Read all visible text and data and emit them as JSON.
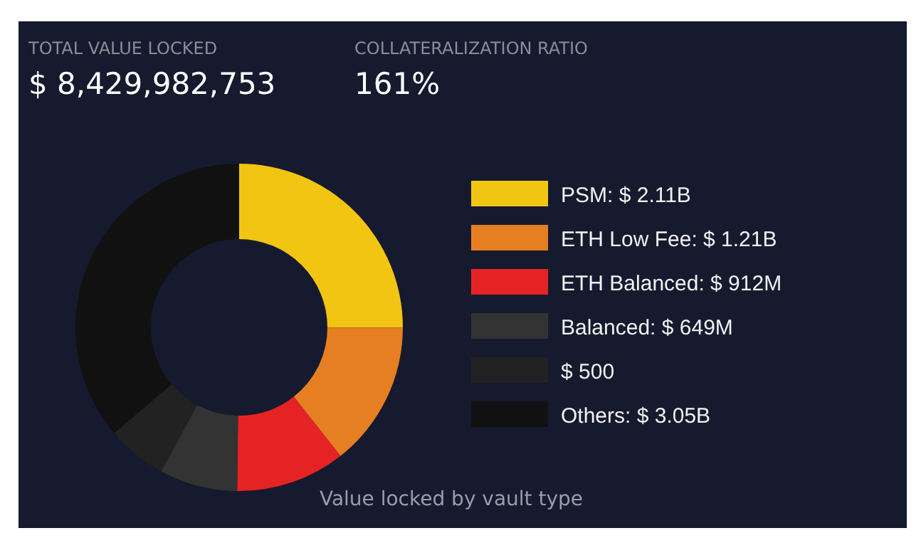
{
  "chart_data": {
    "type": "donut",
    "title": "Value locked by vault type",
    "annotations": [
      "TOTAL VALUE LOCKED",
      "$ 8,429,982,753",
      "COLLATERALIZATION RATIO",
      "161%"
    ],
    "categories": [
      "PSM: $ 2.11B",
      "ETH Low Fee: $ 1.21B",
      "ETH Balanced: $ 912M",
      "Balanced: $ 649M",
      "$ 500",
      "Others: $ 3.05B"
    ],
    "values": [
      2110,
      1210,
      912,
      649,
      500,
      3050
    ],
    "colors": [
      "#f2c512",
      "#e57f22",
      "#e62324",
      "#333333",
      "#222222",
      "#111111"
    ],
    "legend": "right"
  }
}
